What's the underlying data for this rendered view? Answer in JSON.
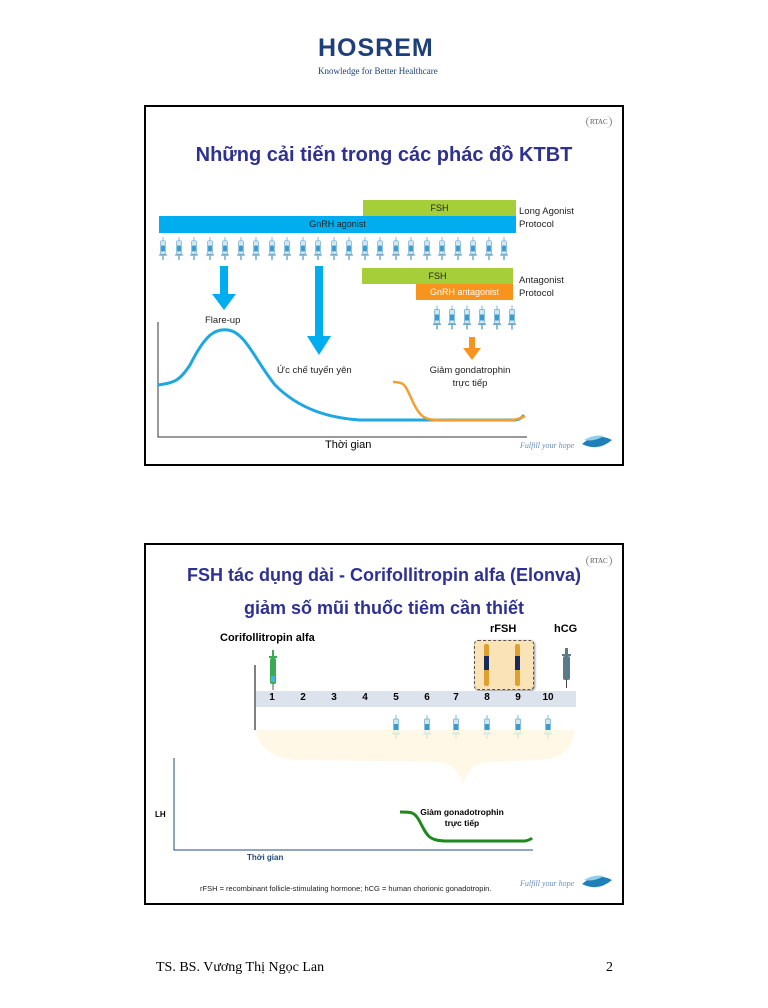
{
  "header": {
    "logo_text": "HOSREM",
    "tagline": "Knowledge for Better Healthcare"
  },
  "slide1": {
    "title": "Những cải tiến trong các phác đồ KTBT",
    "fsh_bar": "FSH",
    "gnrh_agonist_bar": "GnRH agonist",
    "long_protocol_line1": "Long Agonist",
    "long_protocol_line2": "Protocol",
    "fsh_bar2": "FSH",
    "gnrh_antagonist_bar": "GnRH antagonist",
    "antag_protocol_line1": "Antagonist",
    "antag_protocol_line2": "Protocol",
    "flare_up": "Flare-up",
    "suppression": "Ức chế tuyến yên",
    "decrease_line1": "Giảm gondatrophin",
    "decrease_line2": "trực tiếp",
    "xlabel": "Thời gian",
    "slogan": "Fulfill your hope",
    "badge": "RTAC",
    "colors": {
      "green": "#a6ce39",
      "blue": "#00aeef",
      "orange": "#f7941d"
    }
  },
  "slide2": {
    "title_line1": "FSH tác dụng dài - Corifollitropin alfa (Elonva)",
    "title_line2": "giảm số mũi thuốc tiêm cần thiết",
    "corifollitropin_label": "Corifollitropin alfa",
    "rfsh_label": "rFSH",
    "hcg_label": "hCG",
    "days": [
      "1",
      "2",
      "3",
      "4",
      "5",
      "6",
      "7",
      "8",
      "9",
      "10"
    ],
    "ylabel": "LH",
    "decrease_line1": "Giảm gonadotrophin",
    "decrease_line2": "trực tiếp",
    "xlabel": "Thời gian",
    "footnote": "rFSH = recombinant follicle-stimulating hormone; hCG = human chorionic gonadotropin.",
    "slogan": "Fulfill your hope",
    "badge": "RTAC"
  },
  "footer": {
    "author": "TS. BS. Vương Thị Ngọc Lan",
    "page_number": "2"
  }
}
